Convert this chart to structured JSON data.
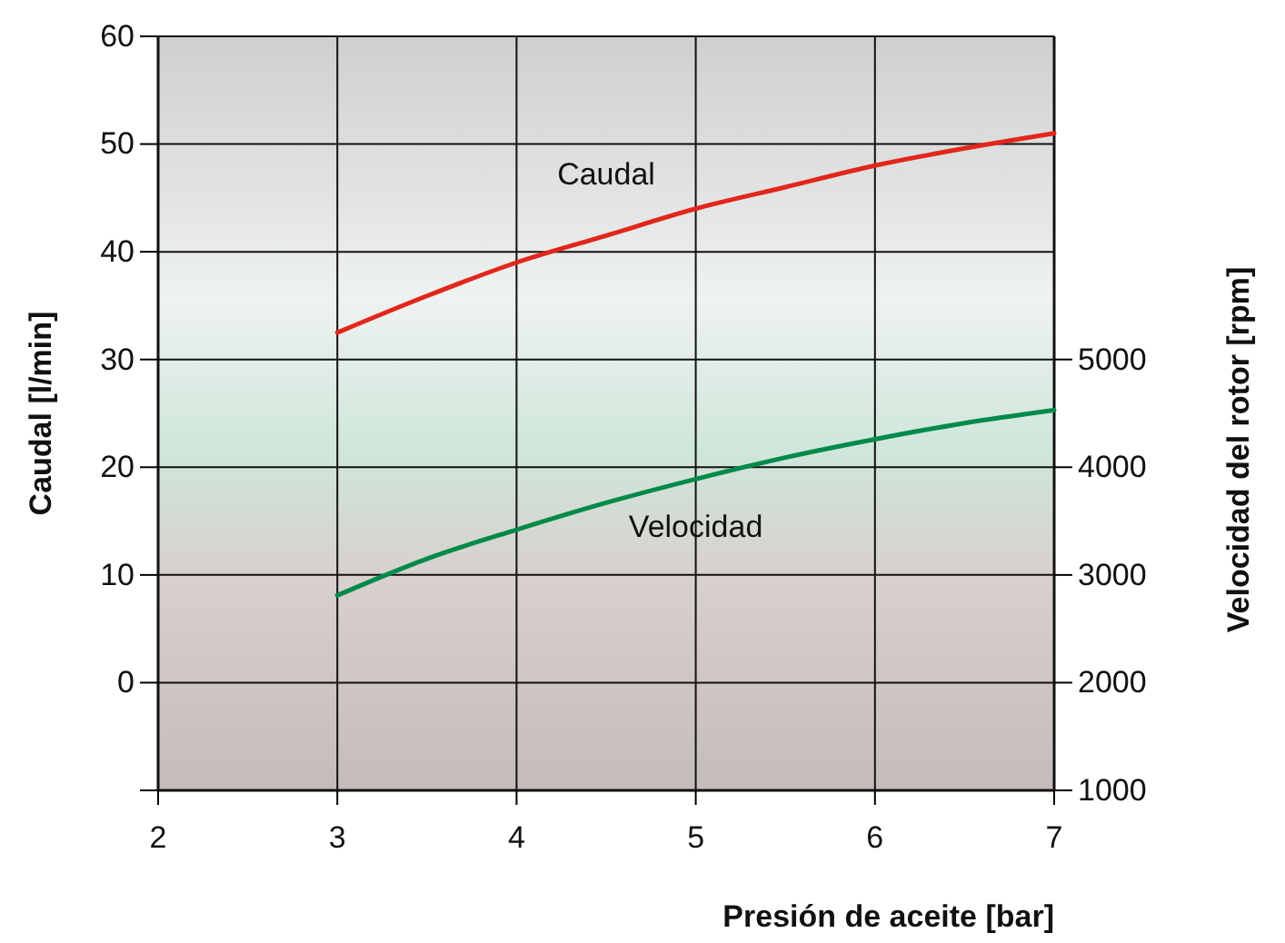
{
  "chart_data": {
    "type": "line",
    "xlabel": "Presión de aceite [bar]",
    "ylabel": "Caudal [l/min]",
    "y2label": "Velocidad del rotor [rpm]",
    "xlim": [
      2,
      7
    ],
    "xticks": [
      2,
      3,
      4,
      5,
      6,
      7
    ],
    "ylim": [
      -10,
      60
    ],
    "yticks": [
      {
        "value": -10,
        "label": null
      },
      0,
      10,
      20,
      30,
      40,
      50,
      60
    ],
    "y2lim": [
      1000,
      8000
    ],
    "y2ticks": [
      1000,
      2000,
      3000,
      4000,
      5000
    ],
    "grid": true,
    "series": [
      {
        "name": "Caudal",
        "color": "#e2261c",
        "x": [
          3,
          3.5,
          4,
          4.5,
          5,
          5.5,
          6,
          6.5,
          7
        ],
        "values": [
          32.5,
          35.9,
          39,
          41.5,
          44,
          46,
          48,
          49.6,
          51
        ]
      },
      {
        "name": "Velocidad",
        "color": "#008a4a",
        "axis": "y2",
        "x": [
          3,
          3.5,
          4,
          4.5,
          5,
          5.5,
          6,
          6.5,
          7
        ],
        "values": [
          2810,
          3150,
          3420,
          3670,
          3890,
          4090,
          4260,
          4410,
          4530
        ]
      }
    ]
  }
}
